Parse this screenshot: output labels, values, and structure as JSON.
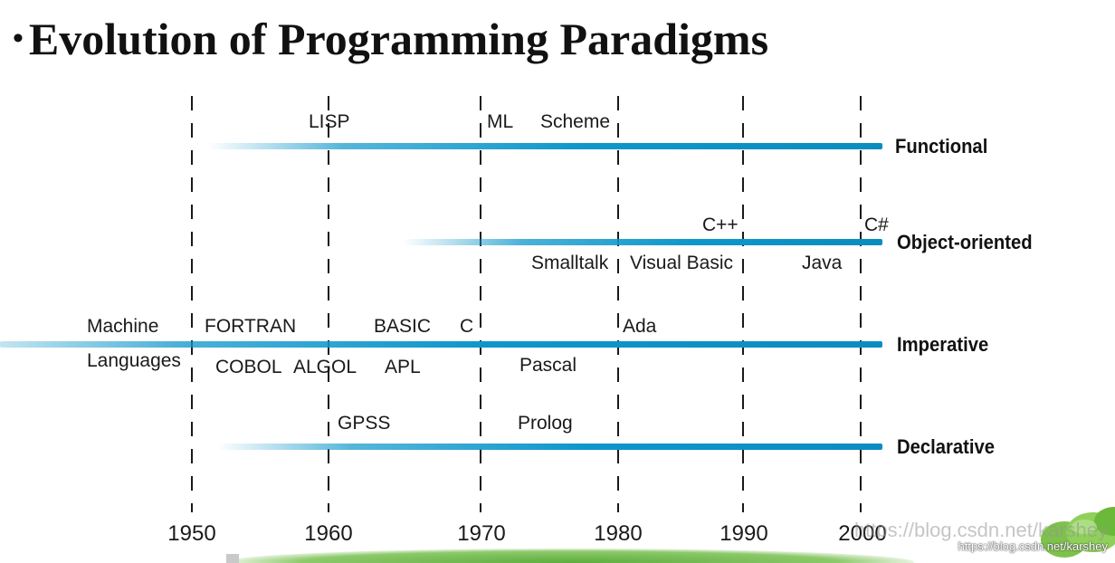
{
  "title": {
    "bullet": "•",
    "text": "Evolution of Programming Paradigms"
  },
  "years": [
    "1950",
    "1960",
    "1970",
    "1980",
    "1990",
    "2000"
  ],
  "paradigms": {
    "functional": "Functional",
    "object_oriented": "Object-oriented",
    "imperative": "Imperative",
    "declarative": "Declarative"
  },
  "languages": {
    "lisp": "LISP",
    "ml": "ML",
    "scheme": "Scheme",
    "cpp": "C++",
    "csharp": "C#",
    "smalltalk": "Smalltalk",
    "visual_basic": "Visual Basic",
    "java": "Java",
    "machine": "Machine",
    "languages_word": "Languages",
    "fortran": "FORTRAN",
    "basic": "BASIC",
    "c": "C",
    "ada": "Ada",
    "cobol": "COBOL",
    "algol": "ALGOL",
    "apl": "APL",
    "pascal": "Pascal",
    "gpss": "GPSS",
    "prolog": "Prolog"
  },
  "watermark": {
    "large": "https://blog.csdn.net/karshey",
    "small": "https://blog.csdn.net/karshey"
  },
  "colors": {
    "bar": "#0e97cb",
    "logo": "#7dc24a"
  }
}
